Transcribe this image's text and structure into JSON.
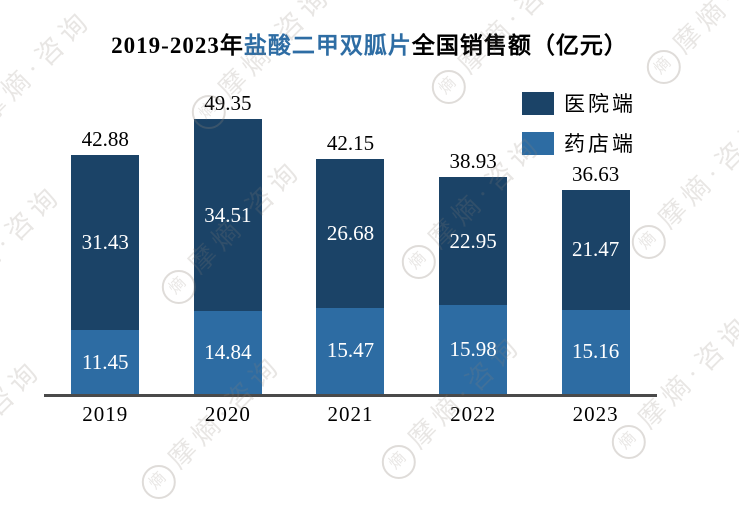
{
  "title": {
    "prefix": "2019-2023年",
    "highlight": "盐酸二甲双胍片",
    "suffix": "全国销售额（亿元）"
  },
  "legend": [
    {
      "label": "医院端",
      "color": "#1B4367"
    },
    {
      "label": "药店端",
      "color": "#2D6CA3"
    }
  ],
  "watermark": {
    "text": "摩熵·咨询",
    "logo_char": "熵"
  },
  "colors": {
    "hospital": "#1B4367",
    "pharmacy": "#2D6CA3",
    "title_highlight": "#2E6DA4",
    "axis": "#4A4A4A",
    "segment_label": "#FFFFFF",
    "total_label": "#000000"
  },
  "chart_data": {
    "type": "bar",
    "stacked": true,
    "title": "2019-2023年盐酸二甲双胍片全国销售额（亿元）",
    "categories": [
      "2019",
      "2020",
      "2021",
      "2022",
      "2023"
    ],
    "series": [
      {
        "name": "医院端",
        "color": "#1B4367",
        "values": [
          31.43,
          34.51,
          26.68,
          22.95,
          21.47
        ]
      },
      {
        "name": "药店端",
        "color": "#2D6CA3",
        "values": [
          11.45,
          14.84,
          15.47,
          15.98,
          15.16
        ]
      }
    ],
    "totals": [
      42.88,
      49.35,
      42.15,
      38.93,
      36.63
    ],
    "xlabel": "",
    "ylabel": "",
    "ylim": [
      0,
      49.35
    ],
    "grid": false,
    "legend_position": "top-right"
  }
}
